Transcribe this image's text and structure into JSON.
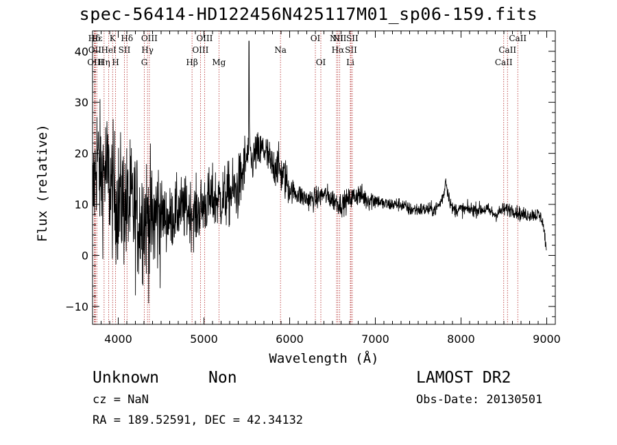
{
  "chart_data": {
    "type": "line",
    "title": "spec-56414-HD122456N425117M01_sp06-159.fits",
    "xlabel": "Wavelength (Å)",
    "ylabel": "Flux (relative)",
    "xlim": [
      3700,
      9100
    ],
    "ylim": [
      -13.5,
      44
    ],
    "xticks": [
      "4000",
      "5000",
      "6000",
      "7000",
      "8000",
      "9000"
    ],
    "yticks": [
      "−10",
      "0",
      "10",
      "20",
      "30",
      "40"
    ],
    "grid": false,
    "series": [
      {
        "x": [
          3700,
          3750,
          3800,
          3850,
          3900,
          3950,
          4000,
          4050,
          4100,
          4150,
          4200,
          4250,
          4300,
          4350,
          4400,
          4450,
          4500,
          4600,
          4700,
          4800,
          4900,
          5000,
          5100,
          5200,
          5300,
          5400,
          5450,
          5500,
          5530,
          5560,
          5600,
          5650,
          5700,
          5750,
          5800,
          5850,
          5900,
          5950,
          6000,
          6100,
          6200,
          6300,
          6400,
          6500,
          6600,
          6700,
          6800,
          6900,
          7000,
          7100,
          7200,
          7300,
          7400,
          7500,
          7600,
          7700,
          7750,
          7800,
          7820,
          7850,
          7900,
          8000,
          8100,
          8200,
          8300,
          8400,
          8500,
          8600,
          8700,
          8800,
          8900,
          8950,
          9000
        ],
        "y": [
          10,
          20,
          15,
          17,
          14,
          12,
          10,
          11,
          9,
          10,
          8,
          7,
          8,
          7,
          6,
          8,
          8,
          7,
          9,
          9,
          8,
          10,
          11,
          11,
          12,
          13,
          16,
          19,
          21,
          18,
          20,
          20,
          21,
          19,
          17,
          18,
          16,
          15,
          13,
          12,
          11,
          11,
          12,
          11,
          10,
          11,
          12,
          11,
          11,
          10,
          10,
          10,
          9,
          9,
          9,
          9,
          10,
          12,
          15,
          12,
          9,
          9,
          9,
          9,
          9,
          8,
          9,
          9,
          8,
          8,
          8,
          7,
          1
        ]
      }
    ],
    "lines": [
      {
        "name": "Hδ",
        "x": 3720,
        "row": 0
      },
      {
        "name": "OII",
        "x": 3727,
        "row": 1
      },
      {
        "name": "OIII",
        "x": 3734,
        "row": 2
      },
      {
        "name": "Hε",
        "x": 3750,
        "row": 0
      },
      {
        "name": "Hη",
        "x": 3835,
        "row": 2
      },
      {
        "name": "HeI",
        "x": 3889,
        "row": 1
      },
      {
        "name": "K",
        "x": 3934,
        "row": 0
      },
      {
        "name": "H",
        "x": 3969,
        "row": 2
      },
      {
        "name": "SII",
        "x": 4072,
        "row": 1
      },
      {
        "name": "Hδ",
        "x": 4102,
        "row": 0
      },
      {
        "name": "G",
        "x": 4304,
        "row": 2
      },
      {
        "name": "Hγ",
        "x": 4341,
        "row": 1
      },
      {
        "name": "OIII",
        "x": 4363,
        "row": 0
      },
      {
        "name": "Hβ",
        "x": 4861,
        "row": 2
      },
      {
        "name": "OIII",
        "x": 4959,
        "row": 1
      },
      {
        "name": "OIII",
        "x": 5007,
        "row": 0
      },
      {
        "name": "Mg",
        "x": 5175,
        "row": 2
      },
      {
        "name": "Na",
        "x": 5893,
        "row": 1
      },
      {
        "name": "OI",
        "x": 6300,
        "row": 0
      },
      {
        "name": "OI",
        "x": 6364,
        "row": 2
      },
      {
        "name": "NII",
        "x": 6548,
        "row": 0
      },
      {
        "name": "Hα",
        "x": 6563,
        "row": 1
      },
      {
        "name": "NII",
        "x": 6583,
        "row": 0
      },
      {
        "name": "Li",
        "x": 6708,
        "row": 2
      },
      {
        "name": "SII",
        "x": 6716,
        "row": 1
      },
      {
        "name": "SII",
        "x": 6731,
        "row": 0
      },
      {
        "name": "CaII",
        "x": 8498,
        "row": 2
      },
      {
        "name": "CaII",
        "x": 8542,
        "row": 1
      },
      {
        "name": "CaII",
        "x": 8662,
        "row": 0
      }
    ]
  },
  "info": {
    "object_class": "Unknown",
    "object_subclass": "Non",
    "survey": "LAMOST DR2",
    "cz": "cz = NaN",
    "obs_date": "Obs-Date: 20130501",
    "radec": "RA = 189.52591, DEC =  42.34132"
  }
}
